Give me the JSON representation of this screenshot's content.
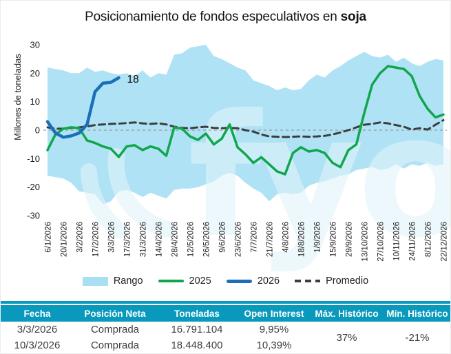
{
  "title": {
    "text": "Posicionamiento de fondos especulativos en",
    "highlight": "soja"
  },
  "watermark": {
    "text": "fyo",
    "color": "#E2F4FB"
  },
  "chart_data": {
    "type": "line",
    "title": "Posicionamiento de fondos especulativos en soja",
    "xlabel": "",
    "ylabel": "Millones de toneladas",
    "ylim": [
      -30,
      30
    ],
    "yticks": [
      30,
      20,
      10,
      0,
      -10,
      -20,
      -30
    ],
    "grid": false,
    "legend_position": "bottom",
    "zero_line": true,
    "x": [
      "6/1/2026",
      "13/1/2026",
      "20/1/2026",
      "27/1/2026",
      "3/2/2026",
      "10/2/2026",
      "17/2/2026",
      "24/2/2026",
      "3/3/2026",
      "10/3/2026",
      "17/3/2026",
      "24/3/2026",
      "31/3/2026",
      "7/4/2026",
      "14/4/2026",
      "21/4/2026",
      "28/4/2026",
      "5/5/2026",
      "12/5/2026",
      "19/5/2026",
      "26/5/2026",
      "2/6/2026",
      "9/6/2026",
      "16/6/2026",
      "23/6/2026",
      "30/6/2026",
      "7/7/2026",
      "14/7/2026",
      "21/7/2026",
      "28/7/2026",
      "4/8/2026",
      "11/8/2026",
      "18/8/2026",
      "25/8/2026",
      "1/9/2026",
      "8/9/2026",
      "15/9/2026",
      "22/9/2026",
      "29/9/2026",
      "6/10/2026",
      "13/10/2026",
      "20/10/2026",
      "27/10/2026",
      "3/11/2026",
      "10/11/2026",
      "17/11/2026",
      "24/11/2026",
      "1/12/2026",
      "8/12/2026",
      "15/12/2026",
      "22/12/2026"
    ],
    "x_tick_labels": [
      "6/1/2026",
      "20/1/2026",
      "3/2/2026",
      "17/2/2026",
      "3/3/2026",
      "17/3/2026",
      "31/3/2026",
      "14/4/2026",
      "28/4/2026",
      "12/5/2026",
      "26/5/2026",
      "9/6/2026",
      "23/6/2026",
      "7/7/2026",
      "21/7/2026",
      "4/8/2026",
      "18/8/2026",
      "1/9/2026",
      "15/9/2026",
      "29/9/2026",
      "13/10/2026",
      "27/10/2026",
      "10/11/2026",
      "24/11/2026",
      "8/12/2026",
      "22/12/2026"
    ],
    "series": [
      {
        "name": "Rango",
        "type": "band",
        "color": "#A8DFF3",
        "upper": [
          22,
          21.5,
          21,
          20,
          20,
          22,
          20.5,
          21,
          20,
          19.5,
          20,
          19,
          21,
          18.5,
          20,
          19.5,
          26.5,
          27,
          29,
          29.5,
          30,
          26,
          25,
          23.5,
          22,
          21,
          17.5,
          16.5,
          15.5,
          14,
          15,
          14,
          14.5,
          17.5,
          19.5,
          18.5,
          21,
          22.5,
          24.5,
          26,
          27.5,
          26,
          25.5,
          26.5,
          24,
          25.5,
          23.5,
          22.5,
          24,
          25,
          24.5
        ],
        "lower": [
          -16,
          -16.5,
          -17,
          -18.5,
          -21.5,
          -22,
          -22.5,
          -26,
          -25,
          -21.5,
          -21,
          -22,
          -23.5,
          -22,
          -23,
          -24,
          -21,
          -20.5,
          -20.5,
          -20,
          -19,
          -18,
          -16,
          -15,
          -16,
          -18.5,
          -20.5,
          -22,
          -25,
          -22.5,
          -22,
          -22.5,
          -22,
          -19.5,
          -18.5,
          -18,
          -17,
          -16,
          -15.5,
          -14,
          -13.5,
          -13,
          -14,
          -13.5,
          -12,
          -13.5,
          -12,
          -12.5,
          -11.5,
          -12.5,
          -12
        ]
      },
      {
        "name": "2025",
        "type": "line",
        "color": "#10A64C",
        "width": 3.5,
        "values": [
          -7,
          -1.5,
          0.5,
          1,
          0.7,
          -3.6,
          -4.5,
          -5.7,
          -6.5,
          -9.4,
          -5.7,
          -5.3,
          -7,
          -5.7,
          -6.5,
          -9,
          1,
          0.5,
          -2.2,
          -3.4,
          -1.2,
          -5,
          -3,
          2,
          -6,
          -8.5,
          -11.5,
          -9.5,
          -12,
          -14.5,
          -15.5,
          -8,
          -6,
          -7.5,
          -7,
          -8,
          -11.5,
          -13,
          -7,
          -5,
          6,
          16,
          20,
          22.5,
          22,
          21.5,
          19,
          12,
          7.5,
          4.5,
          5.5
        ]
      },
      {
        "name": "2026",
        "type": "line",
        "color": "#1B6FB8",
        "width": 4.5,
        "values": [
          3,
          -1,
          -2.5,
          -2,
          -1,
          2,
          13.5,
          16.5,
          16.8,
          18.4
        ]
      },
      {
        "name": "Promedio",
        "type": "dashed",
        "color": "#3D3D3D",
        "width": 3,
        "values": [
          1,
          0.5,
          0.5,
          0.8,
          1,
          1.3,
          1.8,
          2,
          2.2,
          2.3,
          2.5,
          2.7,
          2.4,
          2.2,
          2.4,
          2,
          1.2,
          0.8,
          0.7,
          1,
          1.2,
          0.8,
          0.7,
          0.8,
          0.7,
          0,
          -0.5,
          -1.5,
          -2.2,
          -2.3,
          -2.4,
          -2.3,
          -2.2,
          -2.3,
          -2.2,
          -2,
          -1.5,
          -0.8,
          0,
          1,
          1.9,
          2.2,
          2.7,
          2.4,
          1.8,
          1.2,
          0.2,
          0.7,
          0.2,
          1.9,
          3.5
        ]
      }
    ],
    "annotation": {
      "text": "18",
      "x_index": 9,
      "value": 18.4
    }
  },
  "legend": {
    "items": [
      {
        "label": "Rango",
        "type": "band",
        "color": "#A8DFF3"
      },
      {
        "label": "2025",
        "type": "line",
        "color": "#10A64C"
      },
      {
        "label": "2026",
        "type": "line",
        "color": "#1B6FB8"
      },
      {
        "label": "Promedio",
        "type": "dashed",
        "color": "#3D3D3D"
      }
    ]
  },
  "table": {
    "header_color": "#0899BC",
    "columns": [
      "Fecha",
      "Posición Neta",
      "Toneladas",
      "Open Interest",
      "Máx. Histórico",
      "Mín. Histórico"
    ],
    "rows": [
      [
        "3/3/2026",
        "Comprada",
        "16.791.104",
        "9,95%"
      ],
      [
        "10/3/2026",
        "Comprada",
        "18.448.400",
        "10,39%"
      ]
    ],
    "max_hist": "37%",
    "min_hist": "-21%"
  }
}
